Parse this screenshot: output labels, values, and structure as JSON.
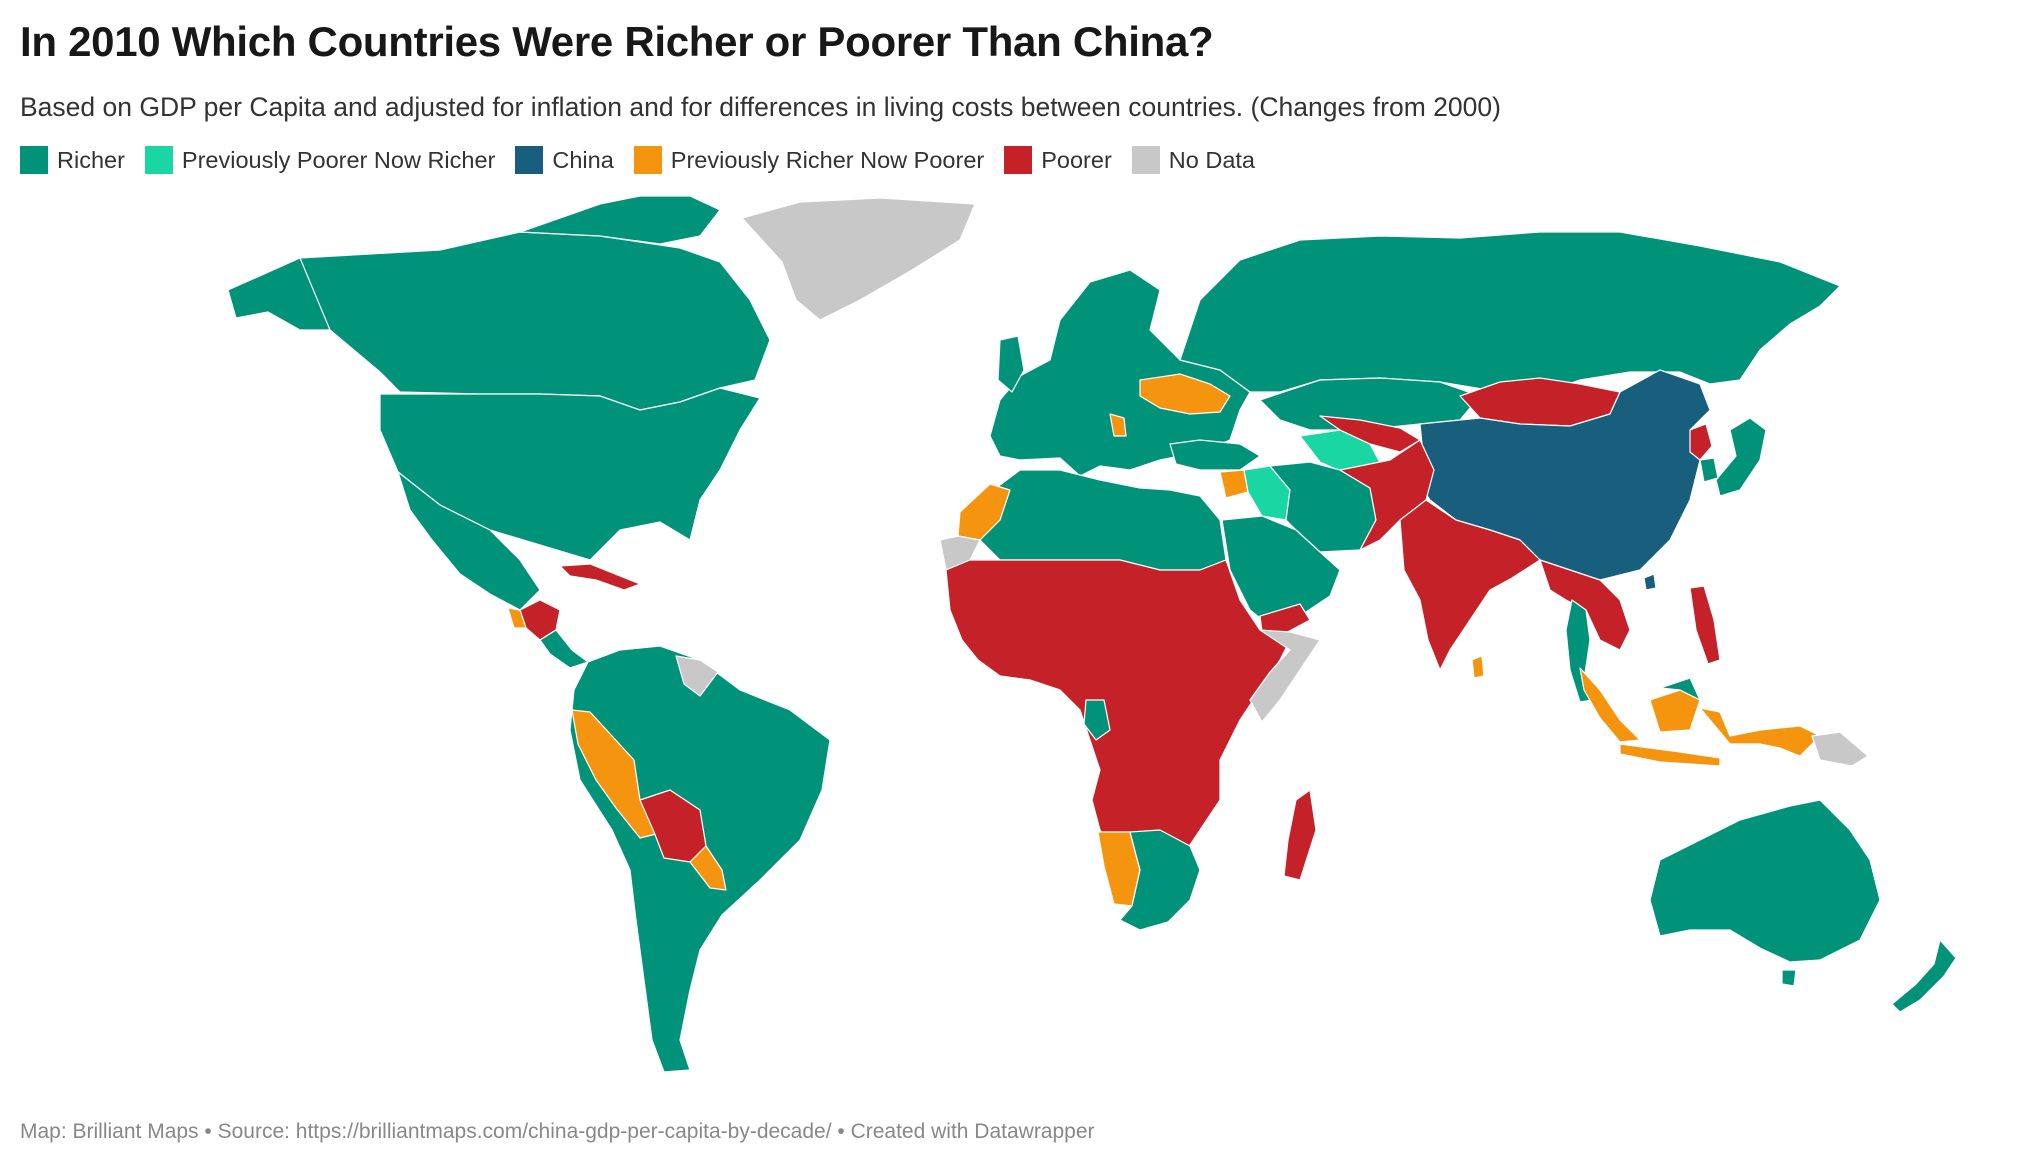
{
  "header": {
    "title": "In 2010 Which Countries Were Richer or Poorer Than China?",
    "subtitle": "Based on GDP per Capita and adjusted for inflation and for differences in living costs between countries. (Changes from 2000)"
  },
  "legend": {
    "items": [
      {
        "label": "Richer",
        "color": "#00937a"
      },
      {
        "label": "Previously Poorer Now Richer",
        "color": "#1ad6a2"
      },
      {
        "label": "China",
        "color": "#175f7c"
      },
      {
        "label": "Previously Richer Now Poorer",
        "color": "#f5940f"
      },
      {
        "label": "Poorer",
        "color": "#c52128"
      },
      {
        "label": "No Data",
        "color": "#c8c8c8"
      }
    ]
  },
  "map": {
    "colors": {
      "richer": "#00937a",
      "prev_poorer_now_richer": "#1ad6a2",
      "china": "#175f7c",
      "prev_richer_now_poorer": "#f5940f",
      "poorer": "#c52128",
      "no_data": "#c8c8c8"
    }
  },
  "footer": {
    "credit": "Map: Brilliant Maps • Source: https://brilliantmaps.com/china-gdp-per-capita-by-decade/ • Created with Datawrapper"
  }
}
